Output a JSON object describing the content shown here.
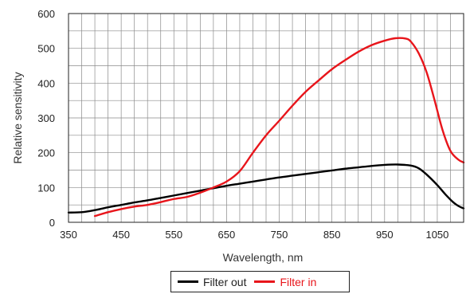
{
  "chart_data": {
    "type": "line",
    "xlabel": "Wavelength, nm",
    "ylabel": "Relative sensitivity",
    "xlim": [
      350,
      1100
    ],
    "ylim": [
      0,
      600
    ],
    "x_ticks": [
      350,
      450,
      550,
      650,
      750,
      850,
      950,
      1050
    ],
    "y_ticks": [
      0,
      100,
      200,
      300,
      400,
      500,
      600
    ],
    "x_minor_step": 25,
    "y_minor_step": 50,
    "grid": true,
    "legend_position": "bottom-center",
    "series": [
      {
        "name": "Filter out",
        "color": "#000000",
        "points": [
          [
            350,
            28
          ],
          [
            375,
            29
          ],
          [
            400,
            35
          ],
          [
            425,
            43
          ],
          [
            450,
            50
          ],
          [
            475,
            57
          ],
          [
            500,
            63
          ],
          [
            525,
            70
          ],
          [
            550,
            77
          ],
          [
            575,
            84
          ],
          [
            600,
            91
          ],
          [
            625,
            98
          ],
          [
            650,
            105
          ],
          [
            675,
            111
          ],
          [
            700,
            117
          ],
          [
            725,
            123
          ],
          [
            750,
            129
          ],
          [
            775,
            134
          ],
          [
            800,
            139
          ],
          [
            825,
            144
          ],
          [
            850,
            149
          ],
          [
            875,
            154
          ],
          [
            900,
            158
          ],
          [
            925,
            162
          ],
          [
            950,
            165
          ],
          [
            975,
            166
          ],
          [
            1000,
            163
          ],
          [
            1015,
            155
          ],
          [
            1030,
            137
          ],
          [
            1050,
            107
          ],
          [
            1065,
            81
          ],
          [
            1080,
            58
          ],
          [
            1090,
            47
          ],
          [
            1100,
            40
          ]
        ]
      },
      {
        "name": "Filter in",
        "color": "#e8151b",
        "points": [
          [
            400,
            18
          ],
          [
            425,
            29
          ],
          [
            450,
            38
          ],
          [
            475,
            45
          ],
          [
            500,
            50
          ],
          [
            525,
            58
          ],
          [
            550,
            67
          ],
          [
            575,
            73
          ],
          [
            600,
            85
          ],
          [
            625,
            100
          ],
          [
            650,
            117
          ],
          [
            675,
            147
          ],
          [
            700,
            200
          ],
          [
            725,
            250
          ],
          [
            750,
            292
          ],
          [
            775,
            335
          ],
          [
            800,
            375
          ],
          [
            825,
            408
          ],
          [
            850,
            440
          ],
          [
            875,
            466
          ],
          [
            900,
            490
          ],
          [
            925,
            509
          ],
          [
            950,
            522
          ],
          [
            970,
            529
          ],
          [
            990,
            528
          ],
          [
            1000,
            519
          ],
          [
            1015,
            485
          ],
          [
            1030,
            430
          ],
          [
            1045,
            350
          ],
          [
            1060,
            265
          ],
          [
            1075,
            205
          ],
          [
            1090,
            180
          ],
          [
            1100,
            172
          ]
        ]
      }
    ]
  }
}
